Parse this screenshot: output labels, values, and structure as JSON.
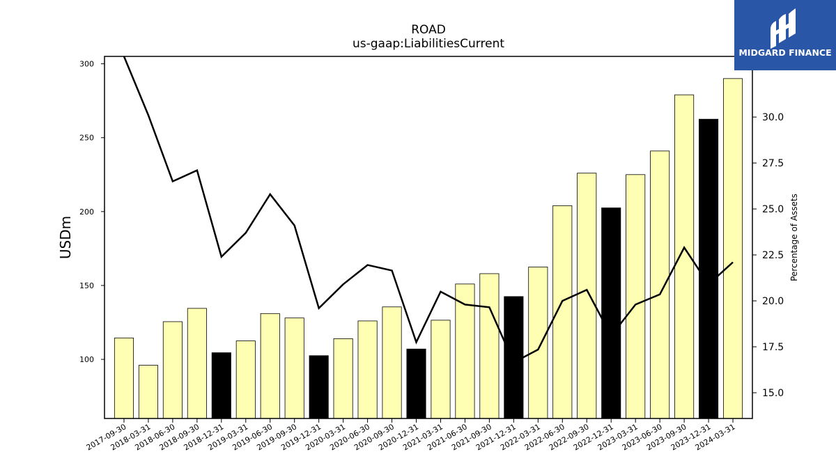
{
  "chart_data": {
    "type": "bar",
    "title": "ROAD",
    "subtitle": "us-gaap:LiabilitiesCurrent",
    "ylabel": "USDm",
    "y2label": "Percentage of Assets",
    "ylim": [
      60,
      305
    ],
    "y2lim": [
      13.6,
      33.3
    ],
    "yticks": [
      100,
      150,
      200,
      250,
      300
    ],
    "y2ticks": [
      "15.0",
      "17.5",
      "20.0",
      "22.5",
      "25.0",
      "27.5",
      "30.0"
    ],
    "categories": [
      "2017-09-30",
      "2018-03-31",
      "2018-06-30",
      "2018-09-30",
      "2018-12-31",
      "2019-03-31",
      "2019-06-30",
      "2019-09-30",
      "2019-12-31",
      "2020-03-31",
      "2020-06-30",
      "2020-09-30",
      "2020-12-31",
      "2021-03-31",
      "2021-06-30",
      "2021-09-30",
      "2021-12-31",
      "2022-03-31",
      "2022-06-30",
      "2022-09-30",
      "2022-12-31",
      "2023-03-31",
      "2023-06-30",
      "2023-09-30",
      "2023-12-31",
      "2024-03-31"
    ],
    "series": [
      {
        "type": "bar",
        "values": [
          114.5,
          96,
          125.5,
          134.5,
          104.5,
          112.5,
          131,
          128,
          102.5,
          114,
          126,
          135.5,
          107,
          126.5,
          151,
          158,
          142.5,
          162.5,
          204,
          226,
          202.5,
          225,
          241,
          279,
          262.5,
          290
        ],
        "highlight": [
          false,
          false,
          false,
          false,
          true,
          false,
          false,
          false,
          true,
          false,
          false,
          false,
          true,
          false,
          false,
          false,
          true,
          false,
          false,
          false,
          true,
          false,
          false,
          false,
          true,
          false
        ]
      },
      {
        "type": "line",
        "axis": "right",
        "values": [
          33.3,
          30.1,
          26.5,
          27.1,
          22.4,
          23.7,
          25.8,
          24.1,
          19.6,
          20.9,
          21.95,
          21.65,
          17.75,
          20.5,
          19.8,
          19.65,
          16.65,
          17.35,
          20.0,
          20.6,
          18.1,
          19.8,
          20.35,
          22.9,
          20.9,
          22.1
        ]
      }
    ],
    "colors": {
      "bar_fill": "#ffffb3",
      "bar_highlight": "#000000",
      "bar_edge": "#000000",
      "line": "#000000"
    },
    "grid": false
  },
  "logo": {
    "text": "MIDGARD FINANCE",
    "icon": "midgard-monogram-icon",
    "background": "#2a56a8"
  }
}
